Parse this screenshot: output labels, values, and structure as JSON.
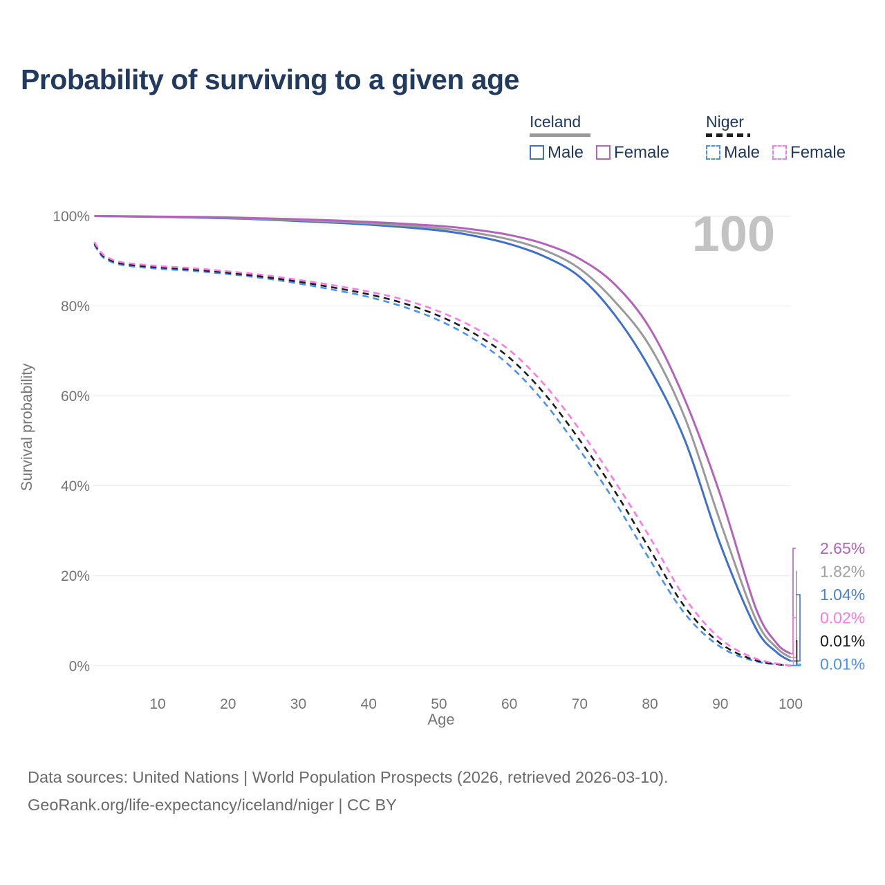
{
  "title": "Probability of surviving to a given age",
  "watermark_age": "100",
  "legend": {
    "groups": [
      {
        "country": "Iceland",
        "line_style": "solid",
        "underline_color": "#9a9a9a",
        "items": [
          {
            "label": "Male",
            "color": "#4170c8"
          },
          {
            "label": "Female",
            "color": "#b265b8"
          }
        ]
      },
      {
        "country": "Niger",
        "line_style": "dashed",
        "underline_color": "#1c1c1c",
        "items": [
          {
            "label": "Male",
            "color": "#4a90f2"
          },
          {
            "label": "Female",
            "color": "#fb79e4"
          }
        ]
      }
    ]
  },
  "axes": {
    "x": {
      "title": "Age",
      "ticks": [
        "10",
        "20",
        "30",
        "40",
        "50",
        "60",
        "70",
        "80",
        "90",
        "100"
      ],
      "tick_values": [
        10,
        20,
        30,
        40,
        50,
        60,
        70,
        80,
        90,
        100
      ]
    },
    "y": {
      "title": "Survival probability",
      "ticks": [
        "0%",
        "20%",
        "40%",
        "60%",
        "80%",
        "100%"
      ],
      "tick_values": [
        0,
        20,
        40,
        60,
        80,
        100
      ]
    }
  },
  "chart_data": {
    "type": "line",
    "title": "Probability of surviving to a given age",
    "xlabel": "Age",
    "ylabel": "Survival probability",
    "xlim": [
      1,
      100
    ],
    "ylim": [
      0,
      100
    ],
    "grid": "horizontal",
    "hover_age": 100,
    "series": [
      {
        "name": "Niger Male",
        "country": "Niger",
        "sex": "male",
        "color": "#4a90f2",
        "dashed": true,
        "end_value_pct": 0.01,
        "points": [
          [
            1,
            93.6
          ],
          [
            2,
            91.2
          ],
          [
            3,
            90.1
          ],
          [
            5,
            89.1
          ],
          [
            10,
            88.3
          ],
          [
            15,
            87.8
          ],
          [
            20,
            87.1
          ],
          [
            25,
            86.2
          ],
          [
            30,
            85.0
          ],
          [
            35,
            83.6
          ],
          [
            40,
            82.0
          ],
          [
            45,
            79.8
          ],
          [
            50,
            76.8
          ],
          [
            55,
            72.6
          ],
          [
            60,
            66.8
          ],
          [
            65,
            58.5
          ],
          [
            70,
            48.0
          ],
          [
            75,
            36.5
          ],
          [
            80,
            23.5
          ],
          [
            85,
            11.5
          ],
          [
            90,
            4.2
          ],
          [
            95,
            1.0
          ],
          [
            100,
            0.01
          ]
        ]
      },
      {
        "name": "Niger Both sexes",
        "country": "Niger",
        "sex": "both",
        "color": "#1c1c1c",
        "dashed": true,
        "end_value_pct": 0.01,
        "points": [
          [
            1,
            93.9
          ],
          [
            2,
            91.5
          ],
          [
            3,
            90.4
          ],
          [
            5,
            89.4
          ],
          [
            10,
            88.6
          ],
          [
            15,
            88.1
          ],
          [
            20,
            87.4
          ],
          [
            25,
            86.5
          ],
          [
            30,
            85.4
          ],
          [
            35,
            84.1
          ],
          [
            40,
            82.6
          ],
          [
            45,
            80.6
          ],
          [
            50,
            77.8
          ],
          [
            55,
            73.9
          ],
          [
            60,
            68.5
          ],
          [
            65,
            60.5
          ],
          [
            70,
            50.2
          ],
          [
            75,
            38.8
          ],
          [
            80,
            25.8
          ],
          [
            85,
            13.0
          ],
          [
            90,
            5.0
          ],
          [
            95,
            1.2
          ],
          [
            100,
            0.01
          ]
        ]
      },
      {
        "name": "Niger Female",
        "country": "Niger",
        "sex": "female",
        "color": "#fb79e4",
        "dashed": true,
        "end_value_pct": 0.02,
        "points": [
          [
            1,
            94.2
          ],
          [
            2,
            91.8
          ],
          [
            3,
            90.7
          ],
          [
            5,
            89.7
          ],
          [
            10,
            88.9
          ],
          [
            15,
            88.4
          ],
          [
            20,
            87.7
          ],
          [
            25,
            86.9
          ],
          [
            30,
            85.8
          ],
          [
            35,
            84.6
          ],
          [
            40,
            83.2
          ],
          [
            45,
            81.4
          ],
          [
            50,
            78.8
          ],
          [
            55,
            75.2
          ],
          [
            60,
            70.2
          ],
          [
            65,
            62.5
          ],
          [
            70,
            52.5
          ],
          [
            75,
            41.0
          ],
          [
            80,
            28.5
          ],
          [
            85,
            15.0
          ],
          [
            90,
            6.0
          ],
          [
            95,
            1.6
          ],
          [
            100,
            0.02
          ]
        ]
      },
      {
        "name": "Iceland Male",
        "country": "Iceland",
        "sex": "male",
        "color": "#4170c8",
        "dashed": false,
        "end_value_pct": 1.04,
        "points": [
          [
            1,
            100
          ],
          [
            10,
            99.8
          ],
          [
            20,
            99.5
          ],
          [
            30,
            98.9
          ],
          [
            40,
            98.1
          ],
          [
            50,
            96.8
          ],
          [
            55,
            95.6
          ],
          [
            60,
            93.8
          ],
          [
            65,
            91.0
          ],
          [
            70,
            86.5
          ],
          [
            75,
            78.0
          ],
          [
            80,
            66.0
          ],
          [
            85,
            50.0
          ],
          [
            90,
            27.0
          ],
          [
            95,
            8.5
          ],
          [
            98,
            3.0
          ],
          [
            100,
            1.04
          ]
        ]
      },
      {
        "name": "Iceland Both sexes",
        "country": "Iceland",
        "sex": "both",
        "color": "#9a9a9a",
        "dashed": false,
        "end_value_pct": 1.82,
        "points": [
          [
            1,
            100
          ],
          [
            10,
            99.85
          ],
          [
            20,
            99.6
          ],
          [
            30,
            99.1
          ],
          [
            40,
            98.4
          ],
          [
            50,
            97.3
          ],
          [
            55,
            96.3
          ],
          [
            60,
            94.8
          ],
          [
            65,
            92.4
          ],
          [
            70,
            88.3
          ],
          [
            75,
            81.0
          ],
          [
            80,
            71.0
          ],
          [
            85,
            55.0
          ],
          [
            90,
            32.0
          ],
          [
            95,
            10.5
          ],
          [
            98,
            4.0
          ],
          [
            100,
            1.82
          ]
        ]
      },
      {
        "name": "Iceland Female",
        "country": "Iceland",
        "sex": "female",
        "color": "#b265b8",
        "dashed": false,
        "end_value_pct": 2.65,
        "points": [
          [
            1,
            100
          ],
          [
            10,
            99.9
          ],
          [
            20,
            99.7
          ],
          [
            30,
            99.3
          ],
          [
            40,
            98.7
          ],
          [
            50,
            97.8
          ],
          [
            55,
            97.0
          ],
          [
            60,
            95.8
          ],
          [
            65,
            93.8
          ],
          [
            70,
            90.5
          ],
          [
            75,
            84.8
          ],
          [
            80,
            75.0
          ],
          [
            85,
            59.0
          ],
          [
            90,
            38.0
          ],
          [
            95,
            13.0
          ],
          [
            98,
            5.0
          ],
          [
            100,
            2.65
          ]
        ]
      }
    ]
  },
  "end_labels": [
    {
      "series": "Iceland Female",
      "value": "2.65%",
      "color": "#b265b8",
      "flag": "iceland"
    },
    {
      "series": "Iceland Both sexes",
      "value": "1.82%",
      "color": "#a0a0a0",
      "flag": "iceland"
    },
    {
      "series": "Iceland Male",
      "value": "1.04%",
      "color": "#4b7ed6",
      "flag": "iceland"
    },
    {
      "series": "Niger Female",
      "value": "0.02%",
      "color": "#fb79e4",
      "flag": "niger"
    },
    {
      "series": "Niger Both sexes",
      "value": "0.01%",
      "color": "#1c1c1c",
      "flag": "niger"
    },
    {
      "series": "Niger Male",
      "value": "0.01%",
      "color": "#4a90f2",
      "flag": "niger"
    }
  ],
  "footer": {
    "line1": "Data sources: United Nations | World Population Prospects (2026, retrieved 2026-03-10).",
    "line2": "GeoRank.org/life-expectancy/iceland/niger | CC BY"
  }
}
